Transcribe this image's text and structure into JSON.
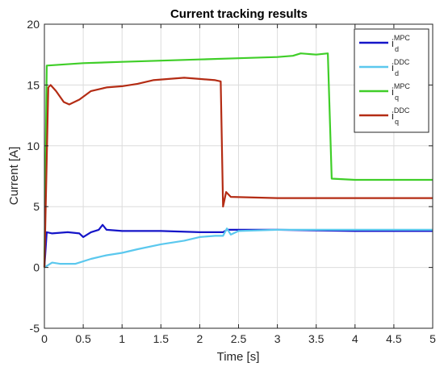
{
  "chart_data": {
    "type": "line",
    "title": "Current tracking results",
    "xlabel": "Time [s]",
    "ylabel": "Current [A]",
    "xlim": [
      0,
      5
    ],
    "ylim": [
      -5,
      20
    ],
    "x_ticks": [
      "0",
      "0.5",
      "1",
      "1.5",
      "2",
      "2.5",
      "3",
      "3.5",
      "4",
      "4.5",
      "5"
    ],
    "y_ticks": [
      "-5",
      "0",
      "5",
      "10",
      "15",
      "20"
    ],
    "grid": true,
    "legend_position": "top-right",
    "series": [
      {
        "label_base": "i",
        "label_sub": "d",
        "label_sup": "MPC",
        "color": "#1515c8",
        "points": [
          [
            0,
            0
          ],
          [
            0.03,
            2.9
          ],
          [
            0.1,
            2.8
          ],
          [
            0.3,
            2.9
          ],
          [
            0.45,
            2.8
          ],
          [
            0.5,
            2.5
          ],
          [
            0.55,
            2.7
          ],
          [
            0.6,
            2.9
          ],
          [
            0.7,
            3.1
          ],
          [
            0.75,
            3.5
          ],
          [
            0.8,
            3.1
          ],
          [
            1.0,
            3.0
          ],
          [
            1.5,
            3.0
          ],
          [
            2.0,
            2.9
          ],
          [
            2.3,
            2.9
          ],
          [
            2.35,
            3.1
          ],
          [
            2.5,
            3.1
          ],
          [
            3.0,
            3.1
          ],
          [
            4.0,
            3.0
          ],
          [
            5.0,
            3.0
          ]
        ]
      },
      {
        "label_base": "i",
        "label_sub": "d",
        "label_sup": "DDC",
        "color": "#5bc8ee",
        "points": [
          [
            0,
            0
          ],
          [
            0.05,
            0.2
          ],
          [
            0.1,
            0.4
          ],
          [
            0.2,
            0.3
          ],
          [
            0.4,
            0.3
          ],
          [
            0.6,
            0.7
          ],
          [
            0.8,
            1.0
          ],
          [
            1.0,
            1.2
          ],
          [
            1.2,
            1.5
          ],
          [
            1.5,
            1.9
          ],
          [
            1.8,
            2.2
          ],
          [
            2.0,
            2.5
          ],
          [
            2.2,
            2.6
          ],
          [
            2.3,
            2.6
          ],
          [
            2.35,
            3.2
          ],
          [
            2.4,
            2.7
          ],
          [
            2.5,
            3.0
          ],
          [
            3.0,
            3.1
          ],
          [
            4.0,
            3.1
          ],
          [
            5.0,
            3.1
          ]
        ]
      },
      {
        "label_base": "i",
        "label_sub": "q",
        "label_sup": "MPC",
        "color": "#3fce28",
        "points": [
          [
            0,
            0
          ],
          [
            0.03,
            16.6
          ],
          [
            0.5,
            16.8
          ],
          [
            1.0,
            16.9
          ],
          [
            1.5,
            17.0
          ],
          [
            2.0,
            17.1
          ],
          [
            2.5,
            17.2
          ],
          [
            3.0,
            17.3
          ],
          [
            3.2,
            17.4
          ],
          [
            3.3,
            17.6
          ],
          [
            3.5,
            17.5
          ],
          [
            3.65,
            17.6
          ],
          [
            3.7,
            7.3
          ],
          [
            4.0,
            7.2
          ],
          [
            5.0,
            7.2
          ]
        ]
      },
      {
        "label_base": "i",
        "label_sub": "q",
        "label_sup": "DDC",
        "color": "#b42c14",
        "points": [
          [
            0,
            0
          ],
          [
            0.05,
            14.8
          ],
          [
            0.08,
            15.0
          ],
          [
            0.15,
            14.5
          ],
          [
            0.25,
            13.6
          ],
          [
            0.32,
            13.4
          ],
          [
            0.45,
            13.8
          ],
          [
            0.6,
            14.5
          ],
          [
            0.8,
            14.8
          ],
          [
            1.0,
            14.9
          ],
          [
            1.2,
            15.1
          ],
          [
            1.4,
            15.4
          ],
          [
            1.6,
            15.5
          ],
          [
            1.8,
            15.6
          ],
          [
            2.0,
            15.5
          ],
          [
            2.2,
            15.4
          ],
          [
            2.27,
            15.3
          ],
          [
            2.3,
            5.0
          ],
          [
            2.34,
            6.2
          ],
          [
            2.4,
            5.8
          ],
          [
            3.0,
            5.7
          ],
          [
            4.0,
            5.7
          ],
          [
            5.0,
            5.7
          ]
        ]
      }
    ]
  }
}
